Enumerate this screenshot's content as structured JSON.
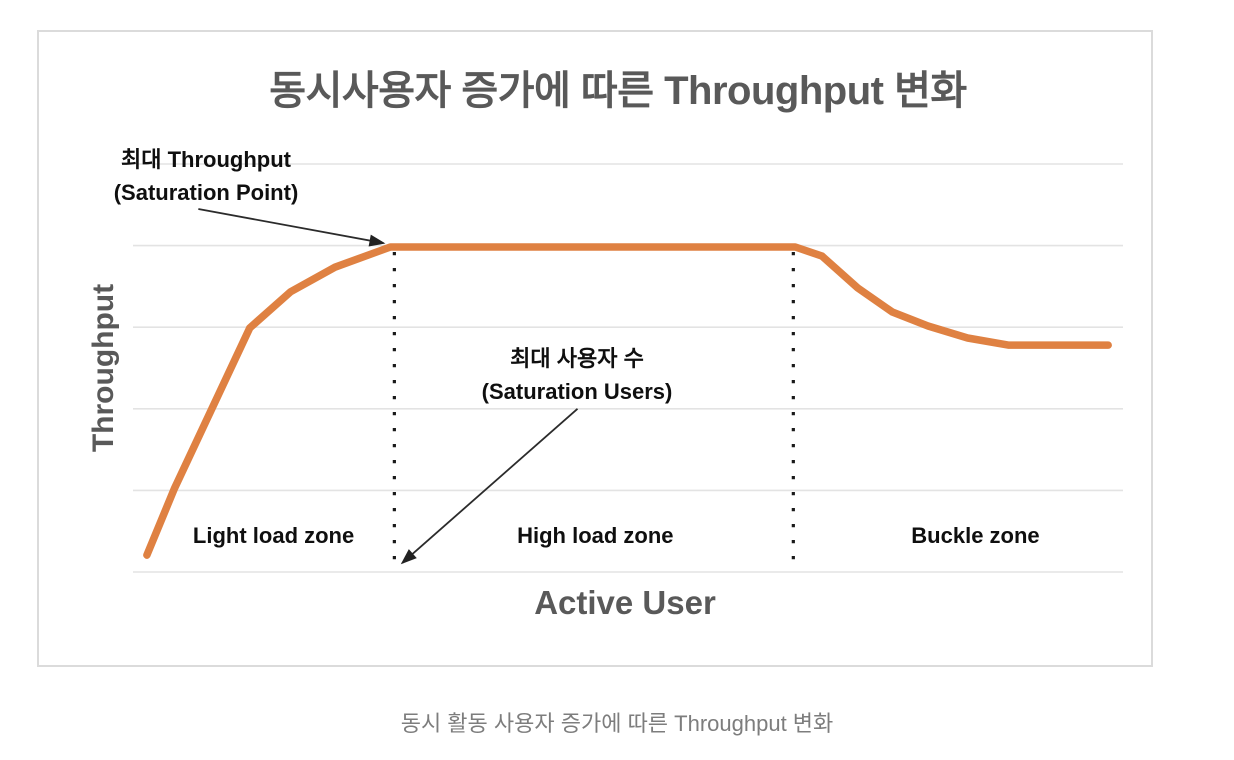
{
  "page": {
    "caption": "동시 활동 사용자 증가에 따른 Throughput 변화"
  },
  "chart": {
    "title": "동시사용자 증가에 따른 Throughput 변화",
    "x_axis_label": "Active User",
    "y_axis_label": "Throughput",
    "annotations": [
      {
        "line1": "최대 Throughput",
        "line2": "(Saturation Point)"
      },
      {
        "line1": "최대 사용자 수",
        "line2": "(Saturation Users)"
      }
    ],
    "zone_labels": [
      {
        "label": "Light load zone"
      },
      {
        "label": "High load zone"
      },
      {
        "label": "Buckle zone"
      }
    ]
  },
  "chart_data": {
    "type": "line",
    "title": "동시사용자 증가에 따른 Throughput 변화",
    "xlabel": "Active User",
    "ylabel": "Throughput",
    "axis_tick_labels": "none (conceptual/unscaled axes)",
    "grid": "horizontal gridlines only, 6 lines, light gray",
    "legend": "none",
    "xlim": [
      0,
      1
    ],
    "ylim": [
      0,
      1.25
    ],
    "line_color": "#DF8142",
    "gridline_color": "#e3e3e3",
    "annotation_color": "#0f0f0f",
    "axis_title_color": "#595959",
    "series": [
      {
        "name": "Throughput",
        "points": [
          [
            0.014,
            0.052
          ],
          [
            0.042,
            0.258
          ],
          [
            0.118,
            0.751
          ],
          [
            0.159,
            0.862
          ],
          [
            0.204,
            0.938
          ],
          [
            0.26,
            1.0
          ],
          [
            0.669,
            1.0
          ],
          [
            0.696,
            0.972
          ],
          [
            0.732,
            0.874
          ],
          [
            0.767,
            0.8
          ],
          [
            0.803,
            0.757
          ],
          [
            0.843,
            0.72
          ],
          [
            0.884,
            0.698
          ],
          [
            0.985,
            0.698
          ]
        ]
      }
    ],
    "saturation_level_y": 1.0,
    "zone_dividers_x": [
      0.264,
      0.667
    ],
    "zones": [
      {
        "label": "Light load zone",
        "x_center": 0.142,
        "x_range": [
          0,
          0.264
        ]
      },
      {
        "label": "High load zone",
        "x_center": 0.467,
        "x_range": [
          0.264,
          0.667
        ]
      },
      {
        "label": "Buckle zone",
        "x_center": 0.851,
        "x_range": [
          0.667,
          1.0
        ]
      }
    ],
    "annotations": [
      {
        "text": "최대 Throughput (Saturation Point)",
        "points_to": "start of plateau on curve",
        "arrow": {
          "from": [
            0.066,
            1.117
          ],
          "to": [
            0.253,
            1.012
          ]
        }
      },
      {
        "text": "최대 사용자 수 (Saturation Users)",
        "points_to": "saturation user count on x-axis",
        "arrow": {
          "from": [
            0.449,
            0.502
          ],
          "to": [
            0.272,
            0.028
          ]
        }
      }
    ]
  }
}
